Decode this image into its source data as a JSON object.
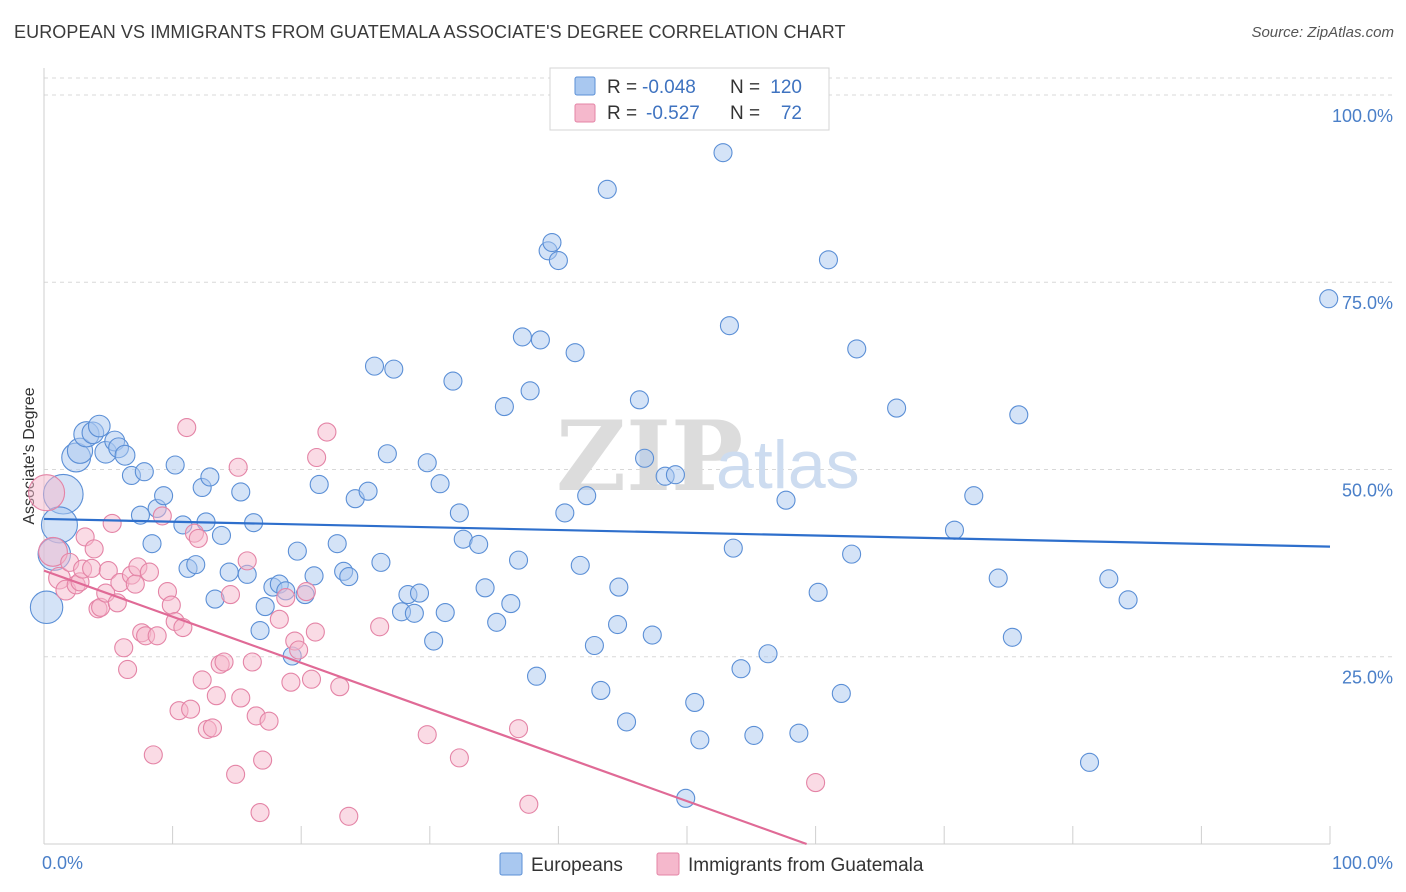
{
  "title": "EUROPEAN VS IMMIGRANTS FROM GUATEMALA ASSOCIATE'S DEGREE CORRELATION CHART",
  "source": "Source: ZipAtlas.com",
  "watermark": {
    "zip": "ZIP",
    "atlas": "atlas"
  },
  "colors": {
    "blue_fill": "#a9c8f0",
    "blue_stroke": "#5b8fd6",
    "blue_line": "#2e6fcc",
    "pink_fill": "#f5b8cc",
    "pink_stroke": "#e484a6",
    "pink_line": "#e06a96",
    "tick_text": "#4a7fc8",
    "grid": "#d8d8d8"
  },
  "legend": {
    "rows": [
      {
        "r_label": "R =",
        "r_value": "-0.048",
        "n_label": "N =",
        "n_value": "120"
      },
      {
        "r_label": "R =",
        "r_value": "-0.527",
        "n_label": "N =",
        "n_value": "72"
      }
    ]
  },
  "chart_data": {
    "type": "scatter",
    "ylabel": "Associate's Degree",
    "xlim": [
      0,
      100
    ],
    "ylim": [
      0,
      102
    ],
    "x_tick_labels": [
      "0.0%",
      "100.0%"
    ],
    "y_ticks": [
      {
        "value": 25,
        "label": "25.0%"
      },
      {
        "value": 50,
        "label": "50.0%"
      },
      {
        "value": 75,
        "label": "75.0%"
      },
      {
        "value": 100,
        "label": "100.0%"
      }
    ],
    "grid": true,
    "legend_placement": "top-center",
    "series": [
      {
        "name": "Europeans",
        "color": "#a9c8f0",
        "trend": [
          [
            0,
            43.4
          ],
          [
            100,
            39.7
          ]
        ],
        "points": [
          [
            0.2,
            31.6,
            1.8
          ],
          [
            1.5,
            46.7,
            2.2
          ],
          [
            1.2,
            42.6,
            2.0
          ],
          [
            0.8,
            38.7,
            1.8
          ],
          [
            2.5,
            51.6,
            1.6
          ],
          [
            2.8,
            52.5,
            1.4
          ],
          [
            3.3,
            54.7,
            1.4
          ],
          [
            3.8,
            54.9,
            1.2
          ],
          [
            4.3,
            55.8,
            1.2
          ],
          [
            4.8,
            52.3,
            1.2
          ],
          [
            5.5,
            53.8,
            1.1
          ],
          [
            5.8,
            52.9,
            1.1
          ],
          [
            6.3,
            51.9,
            1.1
          ],
          [
            6.8,
            49.2,
            1.0
          ],
          [
            7.8,
            49.7,
            1.0
          ],
          [
            8.8,
            44.8,
            1.0
          ],
          [
            9.3,
            46.5,
            1.0
          ],
          [
            8.4,
            40.1,
            1.0
          ],
          [
            7.5,
            43.9,
            1.0
          ],
          [
            10.2,
            50.6,
            1.0
          ],
          [
            10.8,
            42.6,
            1.0
          ],
          [
            11.2,
            36.8,
            1.0
          ],
          [
            11.8,
            37.3,
            1.0
          ],
          [
            12.3,
            47.6,
            1.0
          ],
          [
            12.6,
            43.0,
            1.0
          ],
          [
            12.9,
            49.0,
            1.0
          ],
          [
            13.3,
            32.7,
            1.0
          ],
          [
            13.8,
            41.2,
            1.0
          ],
          [
            14.4,
            36.3,
            1.0
          ],
          [
            15.3,
            47.0,
            1.0
          ],
          [
            15.8,
            36.0,
            1.0
          ],
          [
            16.3,
            42.9,
            1.0
          ],
          [
            16.8,
            28.5,
            1.0
          ],
          [
            17.2,
            31.7,
            1.0
          ],
          [
            17.8,
            34.3,
            1.0
          ],
          [
            18.3,
            34.7,
            1.0
          ],
          [
            18.8,
            33.8,
            1.0
          ],
          [
            19.3,
            25.1,
            1.0
          ],
          [
            19.7,
            39.1,
            1.0
          ],
          [
            20.3,
            33.3,
            1.0
          ],
          [
            21.0,
            35.8,
            1.0
          ],
          [
            21.4,
            48.0,
            1.0
          ],
          [
            22.8,
            40.1,
            1.0
          ],
          [
            23.3,
            36.4,
            1.0
          ],
          [
            23.7,
            35.7,
            1.0
          ],
          [
            24.2,
            46.1,
            1.0
          ],
          [
            25.2,
            47.1,
            1.0
          ],
          [
            25.7,
            63.8,
            1.0
          ],
          [
            26.2,
            37.6,
            1.0
          ],
          [
            26.7,
            52.1,
            1.0
          ],
          [
            27.2,
            63.4,
            1.0
          ],
          [
            27.8,
            31.0,
            1.0
          ],
          [
            28.3,
            33.3,
            1.0
          ],
          [
            28.8,
            30.8,
            1.0
          ],
          [
            29.2,
            33.5,
            1.0
          ],
          [
            29.8,
            50.9,
            1.0
          ],
          [
            30.3,
            27.1,
            1.0
          ],
          [
            30.8,
            48.1,
            1.0
          ],
          [
            31.2,
            30.9,
            1.0
          ],
          [
            31.8,
            61.8,
            1.0
          ],
          [
            32.3,
            44.2,
            1.0
          ],
          [
            32.6,
            40.7,
            1.0
          ],
          [
            33.8,
            40.0,
            1.0
          ],
          [
            34.3,
            34.2,
            1.0
          ],
          [
            35.2,
            29.6,
            1.0
          ],
          [
            35.8,
            58.4,
            1.0
          ],
          [
            36.3,
            32.1,
            1.0
          ],
          [
            37.2,
            67.7,
            1.0
          ],
          [
            37.8,
            60.5,
            1.0
          ],
          [
            38.3,
            22.4,
            1.0
          ],
          [
            38.6,
            67.3,
            1.0
          ],
          [
            39.2,
            79.2,
            1.0
          ],
          [
            39.5,
            80.3,
            1.0
          ],
          [
            40.0,
            77.9,
            1.0
          ],
          [
            40.5,
            44.2,
            1.0
          ],
          [
            41.3,
            65.6,
            1.0
          ],
          [
            41.7,
            37.2,
            1.0
          ],
          [
            42.2,
            46.5,
            1.0
          ],
          [
            42.8,
            26.5,
            1.0
          ],
          [
            43.3,
            20.5,
            1.0
          ],
          [
            43.8,
            87.4,
            1.0
          ],
          [
            44.6,
            29.3,
            1.0
          ],
          [
            44.7,
            34.3,
            1.0
          ],
          [
            45.3,
            16.3,
            1.0
          ],
          [
            46.3,
            59.3,
            1.0
          ],
          [
            46.7,
            51.5,
            1.0
          ],
          [
            47.3,
            27.9,
            1.0
          ],
          [
            48.3,
            49.1,
            1.0
          ],
          [
            49.1,
            49.3,
            1.0
          ],
          [
            49.9,
            6.1,
            1.0
          ],
          [
            50.6,
            18.9,
            1.0
          ],
          [
            51.0,
            13.9,
            1.0
          ],
          [
            52.8,
            92.3,
            1.0
          ],
          [
            53.3,
            69.2,
            1.0
          ],
          [
            53.6,
            39.5,
            1.0
          ],
          [
            54.2,
            23.4,
            1.0
          ],
          [
            55.2,
            14.5,
            1.0
          ],
          [
            56.3,
            25.4,
            1.0
          ],
          [
            57.7,
            45.9,
            1.0
          ],
          [
            58.7,
            14.8,
            1.0
          ],
          [
            60.2,
            33.6,
            1.0
          ],
          [
            61.0,
            78.0,
            1.0
          ],
          [
            62.0,
            20.1,
            1.0
          ],
          [
            62.8,
            38.7,
            1.0
          ],
          [
            63.2,
            66.1,
            1.0
          ],
          [
            66.3,
            58.2,
            1.0
          ],
          [
            70.8,
            41.9,
            1.0
          ],
          [
            72.3,
            46.5,
            1.0
          ],
          [
            74.2,
            35.5,
            1.0
          ],
          [
            75.3,
            27.6,
            1.0
          ],
          [
            75.8,
            57.3,
            1.0
          ],
          [
            81.3,
            10.9,
            1.0
          ],
          [
            82.8,
            35.4,
            1.0
          ],
          [
            84.3,
            32.6,
            1.0
          ],
          [
            99.9,
            72.8,
            1.0
          ],
          [
            36.9,
            37.9,
            1.0
          ]
        ]
      },
      {
        "name": "Immigrants from Guatemala",
        "color": "#f5b8cc",
        "trend": [
          [
            0,
            36.5
          ],
          [
            59.3,
            0
          ]
        ],
        "points": [
          [
            0.2,
            46.9,
            2.0
          ],
          [
            0.7,
            39.0,
            1.6
          ],
          [
            1.2,
            35.5,
            1.2
          ],
          [
            1.7,
            33.9,
            1.1
          ],
          [
            2.0,
            37.6,
            1.0
          ],
          [
            2.5,
            34.6,
            1.0
          ],
          [
            2.8,
            35.0,
            1.0
          ],
          [
            3.0,
            36.7,
            1.0
          ],
          [
            3.2,
            41.0,
            1.0
          ],
          [
            3.7,
            36.8,
            1.0
          ],
          [
            3.9,
            39.4,
            1.0
          ],
          [
            4.2,
            31.4,
            1.0
          ],
          [
            4.4,
            31.6,
            1.0
          ],
          [
            4.8,
            33.5,
            1.0
          ],
          [
            5.0,
            36.5,
            1.0
          ],
          [
            5.3,
            42.8,
            1.0
          ],
          [
            5.7,
            32.2,
            1.0
          ],
          [
            5.9,
            34.9,
            1.0
          ],
          [
            6.2,
            26.2,
            1.0
          ],
          [
            6.5,
            23.3,
            1.0
          ],
          [
            6.8,
            35.9,
            1.0
          ],
          [
            7.1,
            34.7,
            1.0
          ],
          [
            7.3,
            37.0,
            1.0
          ],
          [
            7.6,
            28.2,
            1.0
          ],
          [
            7.9,
            27.8,
            1.0
          ],
          [
            8.2,
            36.3,
            1.0
          ],
          [
            8.5,
            11.9,
            1.0
          ],
          [
            8.8,
            27.8,
            1.0
          ],
          [
            9.2,
            43.8,
            1.0
          ],
          [
            9.6,
            33.7,
            1.0
          ],
          [
            9.9,
            31.9,
            1.0
          ],
          [
            10.2,
            29.7,
            1.0
          ],
          [
            10.5,
            17.8,
            1.0
          ],
          [
            10.8,
            28.9,
            1.0
          ],
          [
            11.1,
            55.6,
            1.0
          ],
          [
            11.4,
            18.0,
            1.0
          ],
          [
            11.7,
            41.5,
            1.0
          ],
          [
            12.0,
            40.8,
            1.0
          ],
          [
            12.3,
            21.9,
            1.0
          ],
          [
            12.7,
            15.3,
            1.0
          ],
          [
            13.1,
            15.5,
            1.0
          ],
          [
            13.4,
            19.8,
            1.0
          ],
          [
            13.7,
            24.0,
            1.0
          ],
          [
            14.0,
            24.3,
            1.0
          ],
          [
            14.5,
            33.3,
            1.0
          ],
          [
            14.9,
            9.3,
            1.0
          ],
          [
            15.1,
            50.3,
            1.0
          ],
          [
            15.3,
            19.5,
            1.0
          ],
          [
            15.8,
            37.8,
            1.0
          ],
          [
            16.2,
            24.3,
            1.0
          ],
          [
            16.5,
            17.1,
            1.0
          ],
          [
            16.8,
            4.2,
            1.0
          ],
          [
            17.0,
            11.2,
            1.0
          ],
          [
            17.5,
            16.4,
            1.0
          ],
          [
            18.3,
            30.0,
            1.0
          ],
          [
            18.8,
            32.9,
            1.0
          ],
          [
            19.2,
            21.6,
            1.0
          ],
          [
            19.5,
            27.1,
            1.0
          ],
          [
            19.8,
            25.9,
            1.0
          ],
          [
            20.4,
            33.7,
            1.0
          ],
          [
            20.8,
            22.0,
            1.0
          ],
          [
            21.1,
            28.3,
            1.0
          ],
          [
            21.2,
            51.6,
            1.0
          ],
          [
            22.0,
            55.0,
            1.0
          ],
          [
            23.0,
            21.0,
            1.0
          ],
          [
            23.7,
            3.7,
            1.0
          ],
          [
            26.1,
            29.0,
            1.0
          ],
          [
            29.8,
            14.6,
            1.0
          ],
          [
            32.3,
            11.5,
            1.0
          ],
          [
            36.9,
            15.4,
            1.0
          ],
          [
            37.7,
            5.3,
            1.0
          ],
          [
            60.0,
            8.2,
            1.0
          ]
        ]
      }
    ]
  }
}
